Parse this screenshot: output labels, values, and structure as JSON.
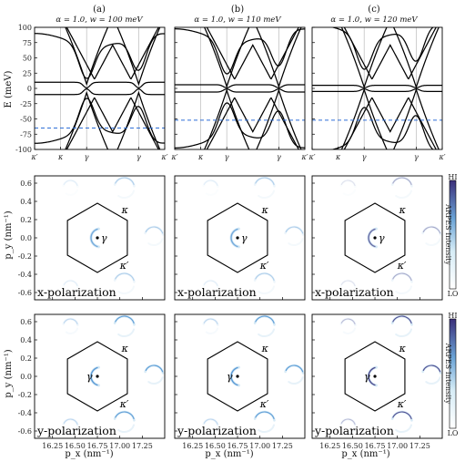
{
  "panel_letters": [
    "(a)",
    "(b)",
    "(c)"
  ],
  "panel_titles": [
    "α = 1.0, w = 100 meV",
    "α = 1.0, w = 110 meV",
    "α = 1.0, w = 120 meV"
  ],
  "colors": {
    "band": "#000000",
    "dashed": "#2f6fd6",
    "arpes_dark": "#3b3580",
    "arpes_mid": "#4a8fd0",
    "arpes_light": "#cfe6f4"
  },
  "chart_data": [
    {
      "type": "line",
      "id": "bands",
      "ylabel": "E (meV)",
      "ylim": [
        -100,
        100
      ],
      "yticks": [
        100,
        75,
        50,
        25,
        0,
        -25,
        -50,
        -75,
        -100
      ],
      "xticks": [
        "κ′",
        "κ",
        "γ",
        "γ",
        "κ′"
      ],
      "xtick_positions": [
        0,
        1,
        2,
        4,
        5
      ],
      "panels": [
        {
          "w": 100,
          "dashed_level": -65,
          "gap": 7,
          "min_top": 0
        },
        {
          "w": 110,
          "dashed_level": -52,
          "gap": 3,
          "min_top": 0
        },
        {
          "w": 120,
          "dashed_level": -52,
          "gap": 2,
          "min_top": 0
        }
      ]
    },
    {
      "type": "heatmap",
      "id": "arpes",
      "xlabel": "p_x (nm⁻¹)",
      "ylabel": "p_y (nm⁻¹)",
      "xlim": [
        16.05,
        17.5
      ],
      "ylim": [
        -0.68,
        0.68
      ],
      "xticks": [
        "16.25",
        "16.50",
        "16.75",
        "17.00",
        "17.25"
      ],
      "yticks": [
        "0.6",
        "0.4",
        "0.2",
        "0.0",
        "-0.2",
        "-0.4",
        "-0.6"
      ],
      "rows": [
        {
          "polarization": "x-polarization"
        },
        {
          "polarization": "y-polarization"
        }
      ],
      "colorbar": {
        "label": "ARPES Intensity",
        "high": "HI",
        "low": "LO"
      },
      "labels": {
        "gamma": "γ",
        "kappa": "κ",
        "kappa_prime": "κ′"
      }
    }
  ],
  "axis_labels": {
    "energy_y": "E (meV)",
    "py": "p_y (nm⁻¹)",
    "px": "p_x (nm⁻¹)"
  }
}
